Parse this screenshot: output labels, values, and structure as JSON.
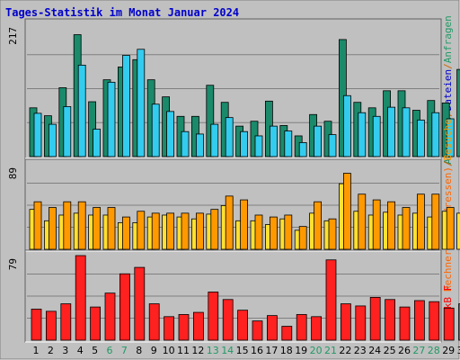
{
  "title": "Tages-Statistik im Monat Januar 2024",
  "colors": {
    "background": "#c0c0c0",
    "title_text": "#0000cc",
    "weekend_label": "#229966",
    "weekday_label": "#000000",
    "hits_front": "#1a8a6a",
    "files_front": "#33ccee",
    "sites_front": "#ffe030",
    "visits_front": "#ff9900",
    "kb_front": "#ff2020",
    "grid_line": "#808080"
  },
  "chart_data": [
    {
      "type": "bar",
      "panel": "top",
      "ymax_label": "217",
      "ylim": [
        0,
        217
      ],
      "legend": [
        {
          "text": "Anfragen",
          "color": "#1a8a6a"
        },
        {
          "text": "/",
          "color": "#cc6600"
        },
        {
          "text": "Dateien",
          "color": "#0000cc"
        },
        {
          "text": "/",
          "color": "#cc6600"
        },
        {
          "text": "Anfragen",
          "color": "#229966"
        }
      ],
      "categories": [
        "1",
        "2",
        "3",
        "4",
        "5",
        "6",
        "7",
        "8",
        "9",
        "10",
        "11",
        "12",
        "13",
        "14",
        "15",
        "16",
        "17",
        "18",
        "19",
        "20",
        "21",
        "22",
        "23",
        "24",
        "25",
        "26",
        "27",
        "28",
        "29",
        "30",
        "31"
      ],
      "weekend_days": [
        6,
        7,
        13,
        14,
        20,
        21,
        27,
        28
      ],
      "series": [
        {
          "name": "Anfragen",
          "values": [
            80,
            67,
            113,
            200,
            90,
            126,
            147,
            159,
            126,
            98,
            66,
            66,
            117,
            89,
            50,
            58,
            91,
            51,
            34,
            69,
            58,
            192,
            89,
            80,
            108,
            108,
            76,
            92,
            88,
            143,
            66
          ]
        },
        {
          "name": "Dateien",
          "values": [
            71,
            53,
            82,
            150,
            45,
            122,
            166,
            176,
            86,
            74,
            41,
            37,
            53,
            64,
            41,
            34,
            50,
            42,
            23,
            50,
            36,
            100,
            72,
            66,
            81,
            80,
            60,
            72,
            62,
            105,
            47
          ]
        }
      ]
    },
    {
      "type": "bar",
      "panel": "middle",
      "ymax_label": "89",
      "ylim": [
        0,
        89
      ],
      "legend": [
        {
          "text": "Rechner (IP-Adressen)",
          "color": "#ff6600"
        },
        {
          "text": "/",
          "color": "#cc6600"
        },
        {
          "text": "Besuche",
          "color": "#ff9900"
        }
      ],
      "categories": [
        "1",
        "2",
        "3",
        "4",
        "5",
        "6",
        "7",
        "8",
        "9",
        "10",
        "11",
        "12",
        "13",
        "14",
        "15",
        "16",
        "17",
        "18",
        "19",
        "20",
        "21",
        "22",
        "23",
        "24",
        "25",
        "26",
        "27",
        "28",
        "29",
        "30",
        "31"
      ],
      "weekend_days": [
        6,
        7,
        13,
        14,
        20,
        21,
        27,
        28
      ],
      "series": [
        {
          "name": "Rechner (IP-Adressen)",
          "values": [
            42,
            30,
            36,
            38,
            36,
            36,
            28,
            28,
            34,
            36,
            34,
            32,
            37,
            46,
            30,
            30,
            26,
            32,
            20,
            38,
            30,
            69,
            40,
            36,
            39,
            36,
            38,
            34,
            40,
            38,
            34
          ]
        },
        {
          "name": "Besuche",
          "values": [
            50,
            44,
            50,
            50,
            44,
            44,
            34,
            40,
            38,
            38,
            38,
            38,
            42,
            56,
            52,
            36,
            34,
            36,
            24,
            50,
            32,
            80,
            58,
            52,
            50,
            44,
            58,
            58,
            44,
            58,
            46
          ]
        }
      ]
    },
    {
      "type": "bar",
      "panel": "bottom",
      "ymax_label": "79",
      "ylim": [
        0,
        79
      ],
      "legend": [
        {
          "text": "kB F",
          "color": "#ff0000"
        }
      ],
      "categories": [
        "1",
        "2",
        "3",
        "4",
        "5",
        "6",
        "7",
        "8",
        "9",
        "10",
        "11",
        "12",
        "13",
        "14",
        "15",
        "16",
        "17",
        "18",
        "19",
        "20",
        "21",
        "22",
        "23",
        "24",
        "25",
        "26",
        "27",
        "28",
        "29",
        "30",
        "31"
      ],
      "weekend_days": [
        6,
        7,
        13,
        14,
        20,
        21,
        27,
        28
      ],
      "series": [
        {
          "name": "kB F",
          "values": [
            29,
            27,
            34,
            79,
            31,
            44,
            62,
            68,
            34,
            22,
            24,
            26,
            45,
            38,
            28,
            18,
            23,
            13,
            24,
            22,
            75,
            34,
            32,
            40,
            38,
            31,
            37,
            36,
            30,
            34,
            23
          ]
        }
      ]
    }
  ]
}
